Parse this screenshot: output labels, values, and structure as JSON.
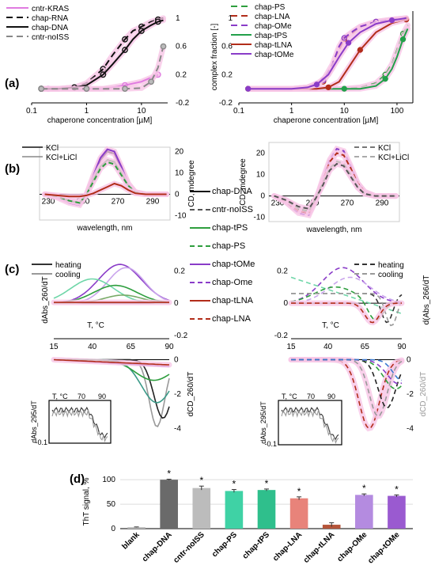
{
  "panel_labels": [
    "(a)",
    "(b)",
    "(c)",
    "(d)"
  ],
  "colors": {
    "cntr-KRAS": "#e07be0",
    "chap-RNA": "#111111",
    "chap-DNA": "#111111",
    "cntr-noISS": "#888888",
    "chap-PS": "#2e9e3e",
    "chap-LNA": "#b22d1a",
    "chap-OMe": "#8a3cc8",
    "chap-tPS": "#22a04a",
    "chap-tLNA": "#b22d1a",
    "chap-tOMe": "#8a3cc8",
    "blank": "#bbbbbb",
    "bar-DNA": "#6a6a6a",
    "bar-noISS": "#bcbcbc",
    "bar-PS": "#3fd2a5",
    "bar-tPS": "#2fbf8c",
    "bar-LNA": "#e8837a",
    "bar-tLNA": "#b5553a",
    "bar-OMe": "#b48be0",
    "bar-tOMe": "#9a5ad0",
    "glow": "#f7c6e6"
  },
  "chart_data": [
    {
      "id": "a-left",
      "type": "line",
      "xlabel": "chaperone concentration [µM]",
      "xscale": "log",
      "xlim": [
        0.1,
        30
      ],
      "ylim": [
        -0.2,
        1.1
      ],
      "xticks": [
        "0.1",
        "1",
        "10"
      ],
      "yticks": [
        "-0.2",
        "0.2",
        "0.6",
        "1"
      ],
      "legend": "top-left",
      "series": [
        {
          "name": "cntr-KRAS",
          "color": "#e07be0",
          "dash": "",
          "x": [
            0.2,
            0.5,
            1,
            2,
            5,
            10,
            20
          ],
          "y": [
            0,
            0,
            0,
            0,
            0.05,
            0.1,
            0.2
          ]
        },
        {
          "name": "chap-RNA",
          "color": "#111111",
          "dash": "8 5",
          "x": [
            0.15,
            0.3,
            0.6,
            1,
            2,
            3,
            5,
            7,
            10,
            15,
            20,
            25
          ],
          "y": [
            0,
            0,
            0.02,
            0.08,
            0.28,
            0.48,
            0.7,
            0.82,
            0.88,
            0.95,
            0.98,
            1.0
          ]
        },
        {
          "name": "chap-DNA",
          "color": "#111111",
          "dash": "",
          "x": [
            0.15,
            0.3,
            0.6,
            1,
            2,
            3,
            5,
            7,
            10,
            15,
            20,
            25
          ],
          "y": [
            0,
            0,
            0.02,
            0.05,
            0.2,
            0.35,
            0.55,
            0.7,
            0.82,
            0.9,
            0.95,
            0.97
          ]
        },
        {
          "name": "cntr-noISS",
          "color": "#888888",
          "dash": "8 5",
          "x": [
            0.15,
            0.5,
            1,
            2,
            5,
            10,
            15,
            20,
            25
          ],
          "y": [
            0,
            0,
            0,
            0,
            0,
            0.01,
            0.1,
            0.3,
            0.6
          ]
        }
      ]
    },
    {
      "id": "a-right",
      "type": "line",
      "xlabel": "chaperone concentration [µM]",
      "ylabel": "complex fraction [-]",
      "xscale": "log",
      "xlim": [
        0.1,
        200
      ],
      "ylim": [
        -0.2,
        1.1
      ],
      "xticks": [
        "0.1",
        "1",
        "10",
        "100"
      ],
      "yticks": [
        "-0.2",
        "0.2",
        "0.6",
        "1"
      ],
      "legend": "top-left",
      "series": [
        {
          "name": "chap-PS",
          "color": "#2e9e3e",
          "dash": "8 5",
          "x": [
            0.15,
            1,
            5,
            10,
            20,
            40,
            60,
            80,
            100,
            130,
            160
          ],
          "y": [
            0,
            0,
            0,
            0,
            0.02,
            0.08,
            0.2,
            0.35,
            0.55,
            0.78,
            0.9
          ]
        },
        {
          "name": "chap-LNA",
          "color": "#b22d1a",
          "dash": "8 5",
          "x": [
            0.15,
            1,
            2,
            4,
            6,
            8,
            10,
            15,
            20,
            40,
            80,
            150
          ],
          "y": [
            0,
            0,
            0.02,
            0.1,
            0.3,
            0.55,
            0.7,
            0.8,
            0.88,
            0.95,
            0.98,
            1
          ]
        },
        {
          "name": "chap-OMe",
          "color": "#8a3cc8",
          "dash": "8 5",
          "x": [
            0.15,
            1,
            2,
            4,
            6,
            8,
            10,
            15,
            20,
            40,
            80,
            150
          ],
          "y": [
            0,
            0,
            0.02,
            0.12,
            0.35,
            0.6,
            0.72,
            0.82,
            0.88,
            0.95,
            0.98,
            1
          ]
        },
        {
          "name": "chap-tPS",
          "color": "#22a04a",
          "dash": "",
          "x": [
            0.15,
            1,
            5,
            10,
            20,
            40,
            60,
            80,
            100,
            130,
            160
          ],
          "y": [
            0,
            0,
            0,
            0,
            0,
            0.04,
            0.14,
            0.28,
            0.45,
            0.7,
            0.85
          ]
        },
        {
          "name": "chap-tLNA",
          "color": "#b22d1a",
          "dash": "",
          "x": [
            0.15,
            1,
            3,
            5,
            8,
            12,
            20,
            40,
            80,
            150
          ],
          "y": [
            0,
            0,
            0,
            0.02,
            0.1,
            0.3,
            0.55,
            0.8,
            0.93,
            0.98
          ]
        },
        {
          "name": "chap-tOMe",
          "color": "#8a3cc8",
          "dash": "",
          "x": [
            0.15,
            1,
            2,
            3,
            5,
            8,
            12,
            20,
            40,
            80,
            150
          ],
          "y": [
            0,
            0,
            0.02,
            0.06,
            0.2,
            0.45,
            0.65,
            0.8,
            0.92,
            0.97,
            1
          ]
        }
      ]
    },
    {
      "id": "b-left",
      "type": "line",
      "xlabel": "wavelength, nm",
      "ylabel": "CD, mdegree",
      "xlim": [
        225,
        300
      ],
      "ylim": [
        -12,
        22
      ],
      "xticks": [
        "230",
        "250",
        "270",
        "290"
      ],
      "yticks": [
        "-10",
        "0",
        "10",
        "20"
      ],
      "legend": "top-left",
      "series": [
        {
          "name": "KCl",
          "color": "#111111",
          "dash": ""
        },
        {
          "name": "KCl+LiCl",
          "color": "#888888",
          "dash": ""
        },
        {
          "name": "chap-DNA",
          "color": "#111111",
          "dash": "",
          "x": [
            228,
            235,
            242,
            248,
            252,
            256,
            260,
            264,
            268,
            272,
            276,
            280,
            286,
            292,
            298
          ],
          "y": [
            0,
            -1,
            -3,
            -4,
            0,
            8,
            16,
            20,
            19,
            12,
            5,
            1,
            0,
            0,
            0
          ]
        },
        {
          "name": "chap-tOMe",
          "color": "#8a3cc8",
          "dash": "",
          "x": [
            228,
            235,
            242,
            248,
            252,
            256,
            260,
            264,
            268,
            272,
            276,
            280,
            286,
            292,
            298
          ],
          "y": [
            0,
            -1.5,
            -4,
            -5,
            0,
            9,
            17,
            21,
            20,
            13,
            5,
            1,
            0,
            0,
            0
          ]
        },
        {
          "name": "chap-tPS",
          "color": "#2e9e3e",
          "dash": "",
          "x": [
            228,
            235,
            242,
            248,
            252,
            256,
            260,
            264,
            268,
            272,
            276,
            280,
            286,
            292,
            298
          ],
          "y": [
            0,
            -1,
            -3,
            -4,
            0,
            7,
            13,
            16,
            15,
            10,
            4,
            1,
            0,
            0,
            0
          ]
        },
        {
          "name": "chap-PS",
          "color": "#2e9e3e",
          "dash": "6 4",
          "x": [
            228,
            235,
            242,
            248,
            252,
            256,
            260,
            264,
            268,
            272,
            276,
            280,
            286,
            292,
            298
          ],
          "y": [
            0,
            -1,
            -3,
            -4,
            0,
            6,
            12,
            15,
            14,
            9,
            4,
            1,
            0,
            0,
            0
          ]
        },
        {
          "name": "chap-tLNA",
          "color": "#b22d1a",
          "dash": "",
          "x": [
            228,
            235,
            242,
            248,
            252,
            256,
            260,
            264,
            268,
            272,
            276,
            280,
            286,
            292,
            298
          ],
          "y": [
            0,
            -0.5,
            -1,
            -1,
            -0.5,
            0.5,
            2,
            3.5,
            5,
            4,
            2,
            0.5,
            0,
            0,
            0
          ]
        }
      ]
    },
    {
      "id": "b-right",
      "type": "line",
      "xlabel": "wavelength, nm",
      "ylabel": "CD, mdegree",
      "xlim": [
        225,
        300
      ],
      "ylim": [
        -12,
        25
      ],
      "xticks": [
        "230",
        "250",
        "270",
        "290"
      ],
      "yticks": [
        "-10",
        "0",
        "10",
        "20"
      ],
      "legend": "top-right",
      "series": [
        {
          "name": "KCl",
          "color": "#777777",
          "dash": "6 4"
        },
        {
          "name": "KCl+LiCl",
          "color": "#aaaaaa",
          "dash": "6 4"
        },
        {
          "name": "chap-OMe",
          "color": "#8a3cc8",
          "dash": "6 4",
          "x": [
            228,
            235,
            242,
            248,
            252,
            256,
            260,
            264,
            268,
            272,
            276,
            280,
            286,
            292,
            298
          ],
          "y": [
            0,
            -3,
            -8,
            -9,
            -2,
            8,
            17,
            22,
            21,
            14,
            6,
            2,
            0,
            0,
            0
          ]
        },
        {
          "name": "chap-LNA",
          "color": "#b22d1a",
          "dash": "6 4",
          "x": [
            228,
            235,
            242,
            248,
            252,
            256,
            260,
            264,
            268,
            272,
            276,
            280,
            286,
            292,
            298
          ],
          "y": [
            0,
            -3,
            -7,
            -8,
            -2,
            7,
            16,
            20,
            19,
            13,
            6,
            2,
            0,
            0,
            0
          ]
        },
        {
          "name": "chap-PS",
          "color": "#2e9e3e",
          "dash": "6 4",
          "x": [
            228,
            235,
            242,
            248,
            252,
            256,
            260,
            264,
            268,
            272,
            276,
            280,
            286,
            292,
            298
          ],
          "y": [
            0,
            -2,
            -6,
            -7,
            -1,
            6,
            13,
            16,
            15,
            10,
            4,
            1,
            0,
            0,
            0
          ]
        },
        {
          "name": "cntr-noISS",
          "color": "#555555",
          "dash": "6 4",
          "x": [
            228,
            235,
            242,
            248,
            252,
            256,
            260,
            264,
            268,
            272,
            276,
            280,
            286,
            292,
            298
          ],
          "y": [
            0,
            -2,
            -5,
            -6,
            -1,
            5,
            12,
            15,
            14,
            9,
            4,
            1,
            0,
            0,
            0
          ]
        }
      ]
    },
    {
      "id": "c-left",
      "type": "line",
      "xlabel": "T, °C",
      "ylabel": "dAbs_260/dT",
      "ylabel2": "dCD_260/dT",
      "inset_ylabel": "dAbs_295/dT",
      "xlim": [
        15,
        90
      ],
      "xticks": [
        "15",
        "40",
        "65",
        "90"
      ],
      "yticks_top": [
        "-0.2",
        "0",
        "0.2"
      ],
      "yticks_bottom": [
        "-4",
        "-2",
        "0"
      ],
      "inset_xticks": [
        "70",
        "90"
      ],
      "inset_yticks": [
        "-0.1"
      ],
      "legend": "top-left",
      "series": [
        {
          "name": "heating",
          "color": "#333333",
          "dash": ""
        },
        {
          "name": "cooling",
          "color": "#999999",
          "dash": ""
        }
      ]
    },
    {
      "id": "c-right",
      "type": "line",
      "xlabel": "T, °C",
      "ylabel": "d(Abs_266/dT",
      "ylabel2": "dCD_260/dT",
      "inset_ylabel": "dAbs_295/dT",
      "xlim": [
        15,
        90
      ],
      "xticks": [
        "15",
        "40",
        "65",
        "90"
      ],
      "yticks_top": [
        "-0.2",
        "0",
        "0.2"
      ],
      "yticks_bottom": [
        "-4",
        "-2",
        "0"
      ],
      "inset_xticks": [
        "70",
        "90"
      ],
      "inset_yticks": [
        "-0.1"
      ],
      "legend": "top-right",
      "series": [
        {
          "name": "heating",
          "color": "#333333",
          "dash": "6 4"
        },
        {
          "name": "cooling",
          "color": "#999999",
          "dash": "6 4"
        }
      ]
    },
    {
      "id": "d",
      "type": "bar",
      "ylabel": "ThT signal, %",
      "ylim": [
        0,
        110
      ],
      "yticks": [
        "0",
        "50",
        "100"
      ],
      "categories": [
        "blank",
        "chap-DNA",
        "cntr-noISS",
        "chap-PS",
        "chap-tPS",
        "chap-LNA",
        "chap-tLNA",
        "chap-OMe",
        "chap-tOMe"
      ],
      "values": [
        3,
        100,
        83,
        77,
        79,
        62,
        8,
        69,
        67
      ],
      "errors": [
        0.5,
        1,
        4,
        3,
        2,
        3,
        4,
        2,
        2
      ],
      "significance": [
        "",
        "*",
        "*",
        "*",
        "*",
        "*",
        "",
        "*",
        "*"
      ]
    }
  ],
  "middle_legend": [
    {
      "label": "chap-DNA",
      "color": "#111111",
      "dash": ""
    },
    {
      "label": "cntr-noISS",
      "color": "#555555",
      "dash": "6 4"
    },
    {
      "label": "chap-tPS",
      "color": "#2e9e3e",
      "dash": ""
    },
    {
      "label": "chap-PS",
      "color": "#2e9e3e",
      "dash": "6 4"
    },
    {
      "label": "chap-tOMe",
      "color": "#8a3cc8",
      "dash": ""
    },
    {
      "label": "chap-Ome",
      "color": "#8a3cc8",
      "dash": "6 4"
    },
    {
      "label": "chap-tLNA",
      "color": "#b22d1a",
      "dash": ""
    },
    {
      "label": "chap-LNA",
      "color": "#b22d1a",
      "dash": "6 4"
    }
  ]
}
